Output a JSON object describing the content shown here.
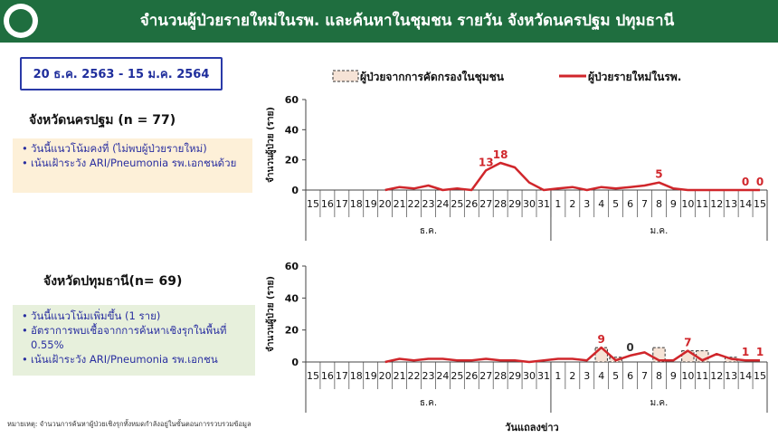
{
  "title": "จำนวนผู้ป่วยรายใหม่ในรพ. และค้นหาในชุมชน รายวัน จังหวัดนครปฐม ปทุมธานี",
  "date_range": "20 ธ.ค. 2563 - 15 ม.ค. 2564",
  "legend": {
    "bar": "ผู้ป่วยจากการคัดกรองในชุมชน",
    "line": "ผู้ป่วยรายใหม่ในรพ."
  },
  "colors": {
    "header": "#1f6e3f",
    "line": "#d0262b",
    "bar_fill": "#f6e3d6",
    "box_border": "#2a3aa8",
    "note1_bg": "#fdf0d8",
    "note2_bg": "#e7f0dc"
  },
  "footnote": "หมายเหตุ: จำนวนการค้นหาผู้ป่วยเชิงรุกทั้งหมดกำลังอยู่ในขั้นตอนการรวบรวมข้อมูล",
  "province1": {
    "label": "จังหวัดนครปฐม (n = 77)",
    "notes": [
      "วันนี้แนวโน้มคงที่ (ไม่พบผู้ป่วยรายใหม่)",
      "เน้นเฝ้าระวัง ARI/Pneumonia รพ.เอกชนด้วย"
    ]
  },
  "province2": {
    "label": "จังหวัดปทุมธานี(n= 69)",
    "notes": [
      "วันนี้แนวโน้มเพิ่มขึ้น (1 ราย)",
      "อัตราการพบเชื้อจากการค้นหาเชิงรุกในพื้นที่ 0.55%",
      "เน้นเฝ้าระวัง ARI/Pneumonia รพ.เอกชน"
    ]
  },
  "chart_data": [
    {
      "type": "bar",
      "ylabel": "จำนวนผู้ป่วย (ราย)",
      "ylim": [
        0,
        60
      ],
      "yticks": [
        0,
        20,
        40,
        60
      ],
      "categories": [
        "15",
        "16",
        "17",
        "18",
        "19",
        "20",
        "21",
        "22",
        "23",
        "24",
        "25",
        "26",
        "27",
        "28",
        "29",
        "30",
        "31",
        "1",
        "2",
        "3",
        "4",
        "5",
        "6",
        "7",
        "8",
        "9",
        "10",
        "11",
        "12",
        "13",
        "14",
        "15"
      ],
      "month_groups": [
        {
          "label": "ธ.ค.",
          "count": 17
        },
        {
          "label": "ม.ค.",
          "count": 15
        }
      ],
      "series": [
        {
          "name": "ผู้ป่วยจากการคัดกรองในชุมชน",
          "kind": "bar",
          "values": [
            0,
            0,
            0,
            0,
            0,
            0,
            0,
            0,
            0,
            0,
            0,
            0,
            0,
            0,
            0,
            0,
            0,
            0,
            0,
            0,
            0,
            0,
            0,
            0,
            0,
            0,
            0,
            0,
            0,
            0,
            0,
            0
          ]
        },
        {
          "name": "ผู้ป่วยรายใหม่ในรพ.",
          "kind": "line",
          "values": [
            null,
            null,
            null,
            null,
            null,
            0,
            2,
            1,
            3,
            0,
            1,
            0,
            13,
            18,
            15,
            5,
            0,
            1,
            2,
            0,
            2,
            1,
            2,
            3,
            5,
            1,
            0,
            0,
            0,
            0,
            0,
            0
          ]
        }
      ],
      "point_labels": [
        {
          "index": 12,
          "text": "13"
        },
        {
          "index": 13,
          "text": "18"
        },
        {
          "index": 24,
          "text": "5"
        },
        {
          "index": 30,
          "text": "0"
        },
        {
          "index": 31,
          "text": "0"
        }
      ]
    },
    {
      "type": "bar",
      "xlabel": "วันแถลงข่าว",
      "ylabel": "จำนวนผู้ป่วย (ราย)",
      "ylim": [
        0,
        60
      ],
      "yticks": [
        0,
        20,
        40,
        60
      ],
      "categories": [
        "15",
        "16",
        "17",
        "18",
        "19",
        "20",
        "21",
        "22",
        "23",
        "24",
        "25",
        "26",
        "27",
        "28",
        "29",
        "30",
        "31",
        "1",
        "2",
        "3",
        "4",
        "5",
        "6",
        "7",
        "8",
        "9",
        "10",
        "11",
        "12",
        "13",
        "14",
        "15"
      ],
      "month_groups": [
        {
          "label": "ธ.ค.",
          "count": 17
        },
        {
          "label": "ม.ค.",
          "count": 15
        }
      ],
      "series": [
        {
          "name": "ผู้ป่วยจากการคัดกรองในชุมชน",
          "kind": "bar",
          "values": [
            0,
            0,
            0,
            0,
            0,
            0,
            0,
            0,
            0,
            0,
            0,
            0,
            0,
            0,
            0,
            0,
            0,
            0,
            0,
            0,
            9,
            3,
            0,
            0,
            9,
            0,
            7,
            7,
            0,
            3,
            0,
            0
          ]
        },
        {
          "name": "ผู้ป่วยรายใหม่ในรพ.",
          "kind": "line",
          "values": [
            null,
            null,
            null,
            null,
            null,
            0,
            2,
            1,
            2,
            2,
            1,
            1,
            2,
            1,
            1,
            0,
            1,
            2,
            2,
            1,
            9,
            1,
            4,
            6,
            1,
            1,
            7,
            1,
            5,
            2,
            1,
            1
          ]
        }
      ],
      "point_labels": [
        {
          "index": 20,
          "text": "9"
        },
        {
          "index": 22,
          "text": "0"
        },
        {
          "index": 26,
          "text": "7"
        },
        {
          "index": 30,
          "text": "1"
        },
        {
          "index": 31,
          "text": "1"
        }
      ]
    }
  ]
}
